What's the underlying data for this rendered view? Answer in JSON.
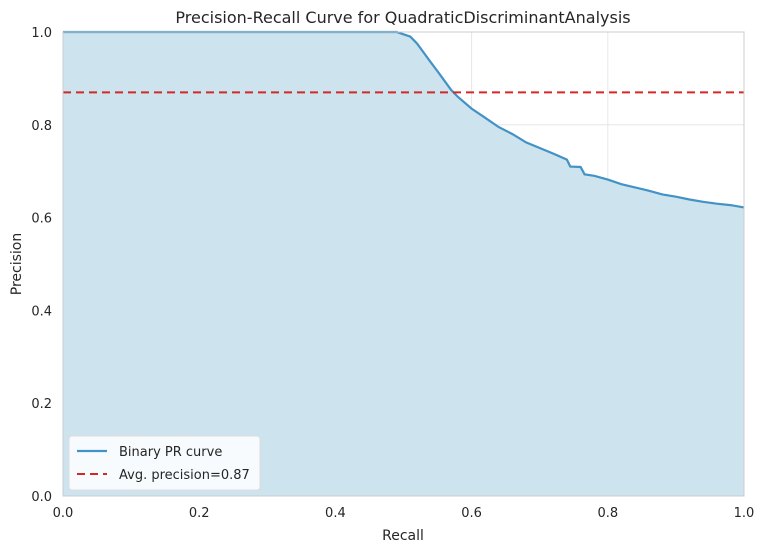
{
  "chart_data": {
    "type": "line",
    "title": "Precision-Recall Curve for QuadraticDiscriminantAnalysis",
    "xlabel": "Recall",
    "ylabel": "Precision",
    "xlim": [
      0.0,
      1.0
    ],
    "ylim": [
      0.0,
      1.0
    ],
    "xticks": [
      "0.0",
      "0.2",
      "0.4",
      "0.6",
      "0.8",
      "1.0"
    ],
    "yticks": [
      "0.0",
      "0.2",
      "0.4",
      "0.6",
      "0.8",
      "1.0"
    ],
    "grid": true,
    "legend_position": "lower-left",
    "series": [
      {
        "name": "Binary PR curve",
        "color": "#4292c6",
        "fill": "#cde3ee",
        "x": [
          0.0,
          0.49,
          0.5,
          0.51,
          0.52,
          0.53,
          0.54,
          0.55,
          0.56,
          0.57,
          0.58,
          0.6,
          0.62,
          0.64,
          0.66,
          0.68,
          0.7,
          0.72,
          0.74,
          0.745,
          0.76,
          0.766,
          0.78,
          0.8,
          0.82,
          0.84,
          0.86,
          0.88,
          0.9,
          0.92,
          0.94,
          0.96,
          0.98,
          1.0
        ],
        "y": [
          1.0,
          1.0,
          0.995,
          0.99,
          0.975,
          0.955,
          0.935,
          0.915,
          0.895,
          0.875,
          0.86,
          0.835,
          0.815,
          0.795,
          0.78,
          0.762,
          0.75,
          0.738,
          0.725,
          0.71,
          0.709,
          0.693,
          0.69,
          0.682,
          0.672,
          0.665,
          0.658,
          0.65,
          0.645,
          0.639,
          0.634,
          0.63,
          0.627,
          0.622
        ]
      },
      {
        "name": "Avg. precision=0.87",
        "color": "#d62728",
        "style": "dashed",
        "value": 0.87
      }
    ]
  }
}
